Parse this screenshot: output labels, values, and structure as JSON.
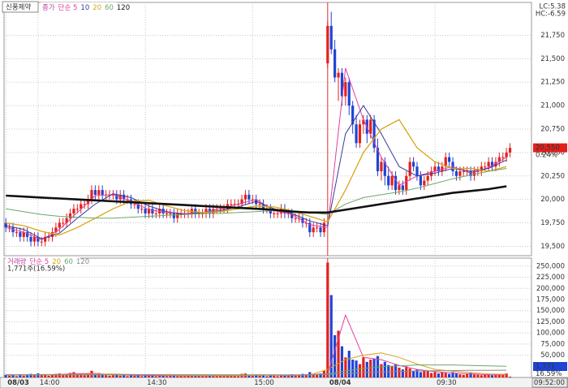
{
  "chart_data": {
    "type": "candlestick",
    "title": "신풍제약",
    "price_legend_prefix": "종가",
    "volume_legend_prefix": "거래량",
    "volume_info": "1,771주(16.59%)",
    "lc": "LC:5.38",
    "hc": "HC:-6.59",
    "time_label": "09:52:00",
    "last_price": {
      "value": 20550,
      "label": "20,550"
    },
    "last_change": {
      "value": 0.24,
      "label": "0.24%"
    },
    "last_volume": {
      "value": 1771,
      "label": "1,771"
    },
    "volume_ratio": {
      "value": 16.59,
      "label": "16.59%"
    },
    "up_color": "#e4201c",
    "down_color": "#1f44d4",
    "grid": true,
    "xlim": [
      -0.5,
      147
    ],
    "xticks": [
      {
        "value": 0,
        "label": "08/03"
      },
      {
        "value": 9,
        "label": "14:00"
      },
      {
        "value": 39,
        "label": "14:30"
      },
      {
        "value": 69,
        "label": "15:00"
      },
      {
        "value": 90,
        "label": "08/04"
      },
      {
        "value": 120,
        "label": "09:30"
      }
    ],
    "ylim": [
      19400,
      22100
    ],
    "yticks": [
      {
        "value": 19500,
        "label": "19,500"
      },
      {
        "value": 19750,
        "label": "19,750"
      },
      {
        "value": 20000,
        "label": "20,000"
      },
      {
        "value": 20250,
        "label": "20,250"
      },
      {
        "value": 20500,
        "label": "20,500"
      },
      {
        "value": 20750,
        "label": "20,750"
      },
      {
        "value": 21000,
        "label": "21,000"
      },
      {
        "value": 21250,
        "label": "21,250"
      },
      {
        "value": 21500,
        "label": "21,500"
      },
      {
        "value": 21750,
        "label": "21,750"
      }
    ],
    "open": [
      19750,
      19700,
      19700,
      19650,
      19650,
      19600,
      19650,
      19600,
      19550,
      19600,
      19550,
      19550,
      19600,
      19600,
      19650,
      19700,
      19750,
      19750,
      19800,
      19850,
      19900,
      19900,
      19950,
      19950,
      20000,
      20100,
      20050,
      20100,
      20050,
      20050,
      20050,
      20050,
      20000,
      20050,
      20000,
      20000,
      19950,
      19950,
      19900,
      19900,
      19850,
      19900,
      19850,
      19850,
      19900,
      19850,
      19850,
      19850,
      19800,
      19850,
      19850,
      19850,
      19850,
      19900,
      19850,
      19850,
      19850,
      19900,
      19850,
      19900,
      19900,
      19900,
      19900,
      19950,
      19950,
      19950,
      19950,
      20000,
      20050,
      20000,
      20000,
      19950,
      19950,
      19900,
      19900,
      19850,
      19850,
      19850,
      19900,
      19850,
      19850,
      19800,
      19800,
      19800,
      19750,
      19750,
      19650,
      19700,
      19700,
      19650,
      21450,
      21850,
      21600,
      21300,
      21350,
      21100,
      21250,
      21000,
      20800,
      20600,
      20800,
      20850,
      20700,
      20850,
      20550,
      20300,
      20400,
      20250,
      20150,
      20250,
      20100,
      20150,
      20100,
      20250,
      20400,
      20350,
      20250,
      20150,
      20200,
      20250,
      20300,
      20350,
      20300,
      20350,
      20450,
      20400,
      20300,
      20250,
      20300,
      20300,
      20300,
      20250,
      20300,
      20300,
      20350,
      20350,
      20400,
      20350,
      20400,
      20450,
      20450,
      20500
    ],
    "high": [
      19800,
      19750,
      19750,
      19700,
      19700,
      19700,
      19700,
      19650,
      19650,
      19650,
      19600,
      19650,
      19650,
      19700,
      19750,
      19800,
      19800,
      19850,
      19900,
      19950,
      19950,
      20000,
      20000,
      20050,
      20150,
      20150,
      20150,
      20150,
      20100,
      20100,
      20100,
      20100,
      20100,
      20100,
      20050,
      20050,
      20000,
      20000,
      19950,
      19950,
      19950,
      19950,
      19900,
      19950,
      19950,
      19900,
      19900,
      19900,
      19900,
      19900,
      19900,
      19900,
      19950,
      19950,
      19900,
      19900,
      19950,
      19950,
      19950,
      19950,
      19950,
      19950,
      20000,
      20000,
      20000,
      20000,
      20050,
      20100,
      20100,
      20050,
      20050,
      20000,
      20000,
      19950,
      19950,
      19900,
      19900,
      19950,
      19950,
      19900,
      19900,
      19850,
      19850,
      19850,
      19800,
      19800,
      19750,
      19750,
      19750,
      19800,
      21900,
      22000,
      21700,
      21400,
      21400,
      21300,
      21300,
      21050,
      20900,
      20850,
      20900,
      20900,
      20900,
      20900,
      20650,
      20450,
      20450,
      20350,
      20300,
      20300,
      20200,
      20200,
      20300,
      20450,
      20450,
      20400,
      20300,
      20250,
      20300,
      20350,
      20400,
      20400,
      20400,
      20500,
      20500,
      20450,
      20350,
      20350,
      20350,
      20350,
      20350,
      20350,
      20350,
      20400,
      20400,
      20450,
      20450,
      20450,
      20500,
      20500,
      20550,
      20600
    ],
    "low": [
      19650,
      19650,
      19600,
      19600,
      19550,
      19550,
      19550,
      19500,
      19500,
      19500,
      19500,
      19500,
      19550,
      19550,
      19600,
      19650,
      19700,
      19700,
      19750,
      19800,
      19850,
      19850,
      19900,
      19900,
      19950,
      20000,
      20000,
      20000,
      20000,
      20000,
      20000,
      19950,
      19950,
      19950,
      19950,
      19900,
      19900,
      19850,
      19850,
      19800,
      19800,
      19800,
      19800,
      19800,
      19800,
      19800,
      19800,
      19750,
      19750,
      19800,
      19800,
      19800,
      19800,
      19800,
      19800,
      19800,
      19800,
      19800,
      19800,
      19850,
      19850,
      19850,
      19850,
      19900,
      19900,
      19900,
      19900,
      19950,
      19950,
      19950,
      19900,
      19900,
      19850,
      19850,
      19800,
      19800,
      19800,
      19800,
      19800,
      19800,
      19750,
      19750,
      19750,
      19700,
      19700,
      19600,
      19600,
      19650,
      19600,
      19600,
      21400,
      21550,
      21250,
      21050,
      21000,
      21000,
      20900,
      20700,
      20550,
      20550,
      20700,
      20600,
      20650,
      20500,
      20250,
      20200,
      20150,
      20100,
      20100,
      20050,
      20050,
      20050,
      20050,
      20200,
      20300,
      20200,
      20100,
      20100,
      20150,
      20200,
      20250,
      20250,
      20250,
      20300,
      20350,
      20250,
      20200,
      20200,
      20250,
      20250,
      20200,
      20200,
      20250,
      20250,
      20300,
      20300,
      20300,
      20300,
      20350,
      20400,
      20400,
      20450
    ],
    "close": [
      19700,
      19700,
      19650,
      19650,
      19600,
      19650,
      19600,
      19550,
      19600,
      19550,
      19550,
      19600,
      19600,
      19650,
      19700,
      19750,
      19750,
      19800,
      19850,
      19900,
      19900,
      19950,
      19950,
      20000,
      20100,
      20050,
      20100,
      20050,
      20050,
      20050,
      20050,
      20000,
      20050,
      20000,
      20000,
      19950,
      19950,
      19900,
      19900,
      19850,
      19900,
      19850,
      19850,
      19900,
      19850,
      19850,
      19850,
      19800,
      19850,
      19850,
      19850,
      19850,
      19900,
      19850,
      19850,
      19850,
      19900,
      19850,
      19900,
      19900,
      19900,
      19900,
      19950,
      19950,
      19950,
      19950,
      20000,
      20050,
      20000,
      20000,
      19950,
      19950,
      19900,
      19900,
      19850,
      19850,
      19850,
      19900,
      19850,
      19850,
      19800,
      19800,
      19800,
      19750,
      19750,
      19650,
      19700,
      19700,
      19650,
      19750,
      21850,
      21600,
      21300,
      21350,
      21100,
      21250,
      21000,
      20800,
      20600,
      20800,
      20850,
      20700,
      20850,
      20550,
      20300,
      20400,
      20250,
      20150,
      20250,
      20100,
      20150,
      20100,
      20250,
      20400,
      20350,
      20250,
      20150,
      20200,
      20250,
      20300,
      20350,
      20300,
      20350,
      20450,
      20400,
      20300,
      20250,
      20300,
      20300,
      20300,
      20250,
      20300,
      20300,
      20350,
      20350,
      20400,
      20350,
      20400,
      20450,
      20450,
      20500,
      20550
    ],
    "ma_x": [
      0,
      5,
      10,
      15,
      20,
      25,
      30,
      35,
      40,
      45,
      50,
      55,
      60,
      65,
      70,
      75,
      80,
      85,
      90,
      95,
      100,
      105,
      110,
      115,
      120,
      125,
      130,
      135,
      140
    ],
    "ma": [
      {
        "name": "단순 5",
        "color": "#e040a0",
        "width": 1,
        "values": [
          19700,
          19650,
          19570,
          19680,
          19860,
          20040,
          20050,
          19980,
          19890,
          19860,
          19850,
          19860,
          19900,
          19950,
          20000,
          19880,
          19840,
          19730,
          19700,
          21400,
          20850,
          20450,
          20150,
          20250,
          20300,
          20350,
          20280,
          20340,
          20450
        ]
      },
      {
        "name": "10",
        "color": "#3a3a9a",
        "width": 1,
        "values": [
          19720,
          19680,
          19580,
          19640,
          19800,
          19950,
          20060,
          20020,
          19930,
          19870,
          19840,
          19860,
          19880,
          19920,
          19980,
          19900,
          19850,
          19770,
          19720,
          20700,
          21000,
          20700,
          20350,
          20250,
          20280,
          20330,
          20300,
          20330,
          20420
        ]
      },
      {
        "name": "20",
        "color": "#d8a418",
        "width": 1.3,
        "values": [
          19750,
          19720,
          19660,
          19620,
          19700,
          19800,
          19900,
          19980,
          19990,
          19930,
          19880,
          19860,
          19870,
          19900,
          19930,
          19920,
          19880,
          19820,
          19760,
          20100,
          20500,
          20750,
          20850,
          20550,
          20400,
          20330,
          20330,
          20300,
          20350
        ]
      },
      {
        "name": "60",
        "color": "#6aa86a",
        "width": 1,
        "values": [
          19900,
          19870,
          19840,
          19820,
          19810,
          19800,
          19800,
          19810,
          19820,
          19830,
          19840,
          19850,
          19850,
          19860,
          19870,
          19880,
          19880,
          19860,
          19840,
          19950,
          20020,
          20050,
          20080,
          20120,
          20170,
          20220,
          20260,
          20300,
          20330
        ]
      },
      {
        "name": "120",
        "color": "#111111",
        "width": 2.6,
        "values": [
          20040,
          20030,
          20020,
          20010,
          20000,
          19990,
          19980,
          19970,
          19960,
          19950,
          19940,
          19930,
          19920,
          19910,
          19900,
          19890,
          19870,
          19860,
          19860,
          19890,
          19920,
          19950,
          19980,
          20010,
          20040,
          20070,
          20090,
          20110,
          20140
        ]
      }
    ],
    "volume": {
      "ylim": [
        0,
        268000
      ],
      "yticks": [
        {
          "value": 50000,
          "label": "50,000"
        },
        {
          "value": 75000,
          "label": "75,000"
        },
        {
          "value": 100000,
          "label": "100,000"
        },
        {
          "value": 125000,
          "label": "125,000"
        },
        {
          "value": 150000,
          "label": "150,000"
        },
        {
          "value": 175000,
          "label": "175,000"
        },
        {
          "value": 200000,
          "label": "200,000"
        },
        {
          "value": 225000,
          "label": "225,000"
        },
        {
          "value": 250000,
          "label": "250,000"
        }
      ],
      "values": [
        6000,
        4000,
        5000,
        3000,
        7000,
        4000,
        5000,
        8000,
        6000,
        9000,
        5000,
        7000,
        4000,
        6000,
        8000,
        9000,
        5000,
        7000,
        10000,
        12000,
        6000,
        8000,
        5000,
        9000,
        15000,
        8000,
        10000,
        6000,
        5000,
        4000,
        5000,
        6000,
        4000,
        5000,
        3000,
        6000,
        4000,
        5000,
        3000,
        6000,
        4000,
        5000,
        3000,
        4000,
        5000,
        3000,
        4000,
        6000,
        3000,
        4000,
        3000,
        4000,
        5000,
        3000,
        4000,
        3000,
        5000,
        4000,
        6000,
        3000,
        4000,
        5000,
        6000,
        4000,
        5000,
        3000,
        8000,
        9000,
        5000,
        4000,
        5000,
        4000,
        6000,
        3000,
        5000,
        4000,
        3000,
        6000,
        4000,
        5000,
        7000,
        5000,
        6000,
        8000,
        5000,
        12000,
        7000,
        6000,
        9000,
        15000,
        258000,
        185000,
        95000,
        105000,
        70000,
        45000,
        60000,
        40000,
        38000,
        30000,
        45000,
        35000,
        40000,
        42000,
        48000,
        30000,
        35000,
        28000,
        25000,
        30000,
        22000,
        18000,
        25000,
        20000,
        15000,
        18000,
        12000,
        14000,
        15000,
        10000,
        12000,
        9000,
        11000,
        10000,
        8000,
        12000,
        9000,
        7000,
        6000,
        8000,
        10000,
        7000,
        6000,
        5000,
        6000,
        7000,
        5000,
        6000,
        8000,
        7000,
        9000,
        1771
      ],
      "ma": [
        {
          "name": "단순 5",
          "color": "#e040a0",
          "width": 1,
          "values": [
            5000,
            5500,
            6500,
            7000,
            8500,
            9000,
            6000,
            5000,
            4500,
            4000,
            4000,
            3800,
            4200,
            4500,
            6000,
            5000,
            4500,
            6500,
            8000,
            140000,
            45000,
            40000,
            27000,
            18000,
            13000,
            10000,
            8000,
            6000,
            6000
          ]
        },
        {
          "name": "20",
          "color": "#d8a418",
          "width": 1,
          "values": [
            6000,
            6000,
            6200,
            6500,
            7000,
            7500,
            7800,
            7000,
            6000,
            5000,
            4500,
            4200,
            4000,
            4200,
            4800,
            5000,
            5000,
            5500,
            18000,
            40000,
            50000,
            55000,
            45000,
            30000,
            18000,
            14000,
            11000,
            8000,
            7000
          ]
        },
        {
          "name": "60",
          "color": "#6aa86a",
          "width": 1,
          "values": [
            6000,
            6000,
            6000,
            6100,
            6200,
            6300,
            6400,
            6400,
            6300,
            6200,
            6000,
            5800,
            5600,
            5500,
            5500,
            5500,
            5500,
            5600,
            8000,
            15000,
            20000,
            24000,
            26000,
            28000,
            28000,
            28000,
            27000,
            26000,
            25000
          ]
        },
        {
          "name": "120",
          "color": "#8a8a8a",
          "width": 1,
          "values": [
            6000,
            6000,
            6000,
            6000,
            6000,
            6000,
            6000,
            6000,
            6000,
            6000,
            6000,
            6000,
            6000,
            6000,
            6000,
            6000,
            6000,
            6000,
            6500,
            9000,
            11000,
            12500,
            13500,
            14500,
            15000,
            15500,
            15800,
            16000,
            16200
          ]
        }
      ]
    }
  }
}
